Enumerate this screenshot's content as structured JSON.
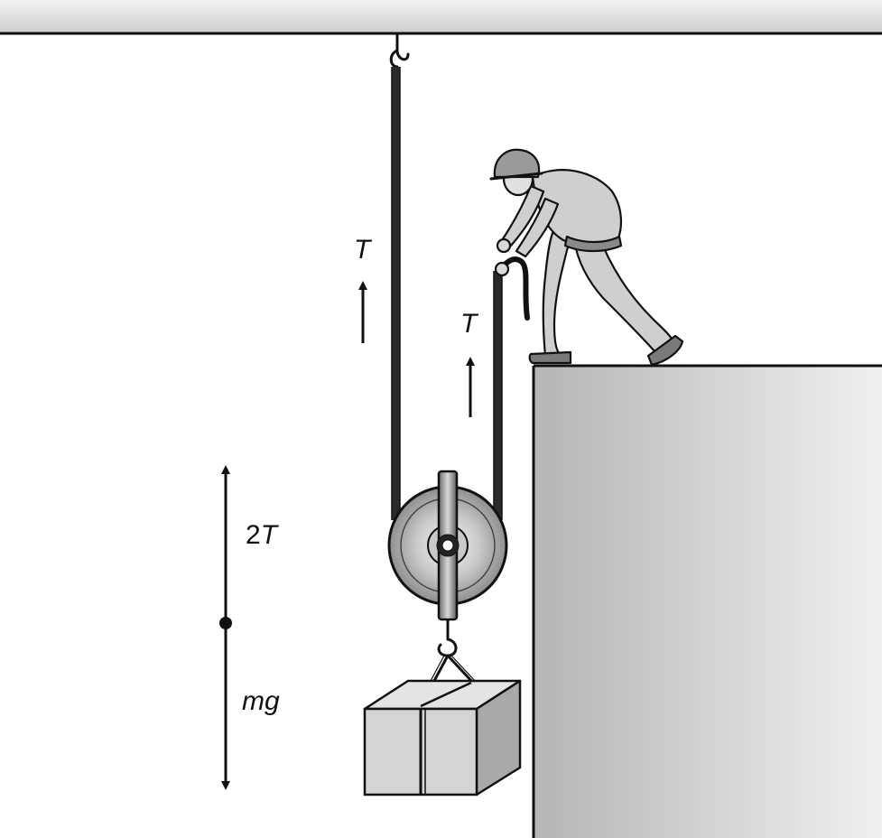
{
  "diagram": {
    "labels": {
      "tension_left": "T",
      "tension_right": "T",
      "upward_force_coefficient": "2",
      "upward_force_symbol": "T",
      "weight": "mg"
    },
    "colors": {
      "ink": "#111111",
      "ceiling": "#dcdcdc",
      "wall_light": "#eeeeee",
      "wall_dark": "#b8b8b8",
      "box_front": "#d4d4d4",
      "box_top": "#e4e4e4",
      "box_side": "#a9a9a9",
      "pulley_outer": "#9c9c9c",
      "pulley_inner": "#e2e2e2",
      "person_clothes": "#cfcfcf"
    }
  }
}
